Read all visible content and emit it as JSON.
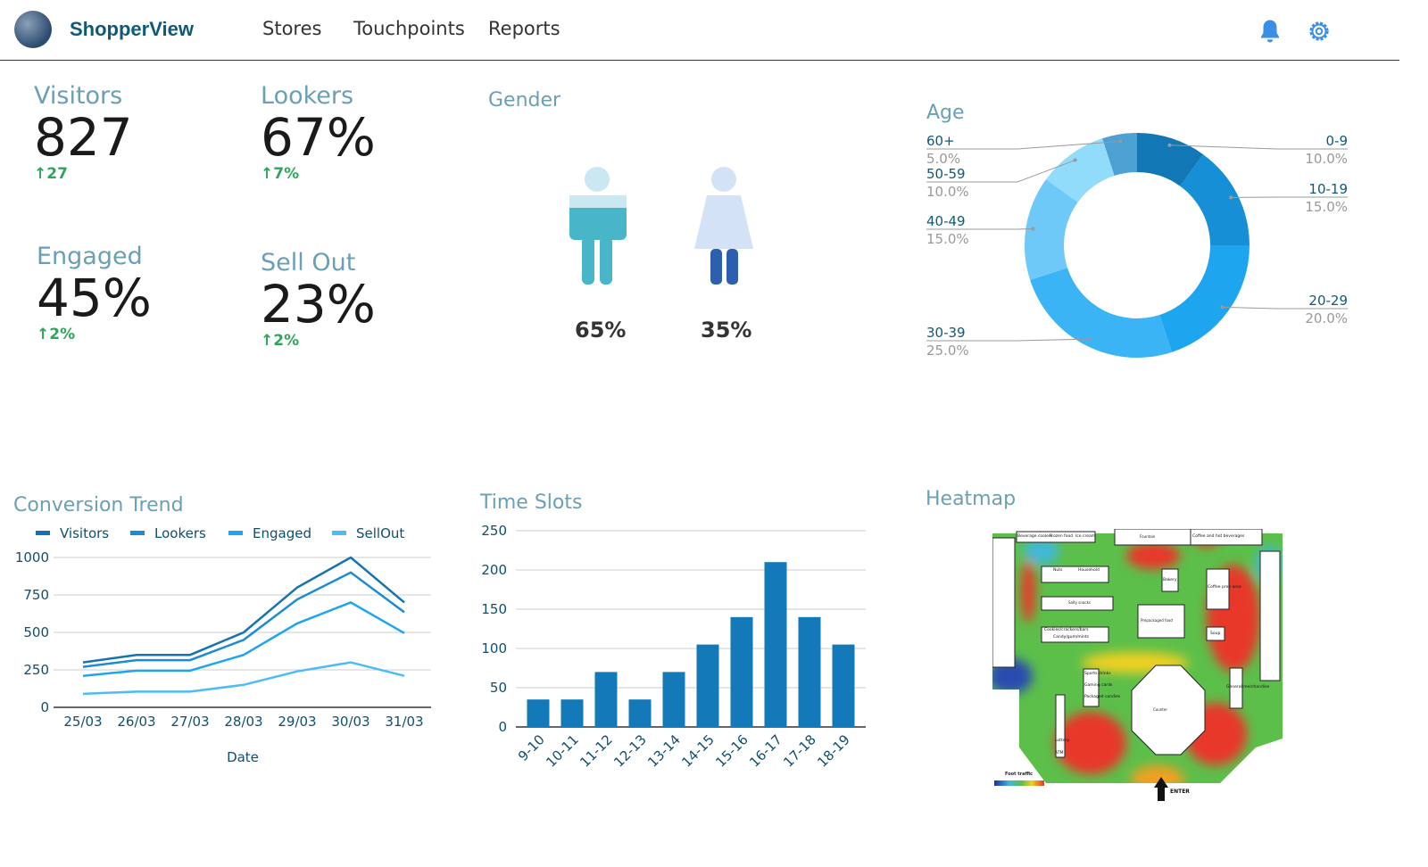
{
  "header": {
    "brand": "ShopperView",
    "nav": [
      "Stores",
      "Touchpoints",
      "Reports"
    ],
    "icons": [
      "bell-icon",
      "gear-icon"
    ],
    "accent": "#3a8ee6"
  },
  "kpis": [
    {
      "label": "Visitors",
      "value": "827",
      "delta": "27"
    },
    {
      "label": "Lookers",
      "value": "67%",
      "delta": "7%"
    },
    {
      "label": "Engaged",
      "value": "45%",
      "delta": "2%"
    },
    {
      "label": "Sell Out",
      "value": "23%",
      "delta": "2%"
    }
  ],
  "gender": {
    "title": "Gender",
    "male": "65%",
    "female": "35%"
  },
  "age": {
    "title": "Age",
    "slices": [
      {
        "label": "0-9",
        "pct": "10.0%",
        "value": 10,
        "color": "#1177b5"
      },
      {
        "label": "10-19",
        "pct": "15.0%",
        "value": 15,
        "color": "#178fd6"
      },
      {
        "label": "20-29",
        "pct": "20.0%",
        "value": 20,
        "color": "#1ea5f0"
      },
      {
        "label": "30-39",
        "pct": "25.0%",
        "value": 25,
        "color": "#3ab4f5"
      },
      {
        "label": "40-49",
        "pct": "15.0%",
        "value": 15,
        "color": "#6ec8f8"
      },
      {
        "label": "50-59",
        "pct": "10.0%",
        "value": 10,
        "color": "#92dcfb"
      },
      {
        "label": "60+",
        "pct": "5.0%",
        "value": 5,
        "color": "#4ca1d2"
      }
    ]
  },
  "chart_data": [
    {
      "type": "line",
      "title": "Conversion Trend",
      "xlabel": "Date",
      "ylabel": "",
      "ylim": [
        0,
        1000
      ],
      "yticks": [
        0,
        250,
        500,
        750,
        1000
      ],
      "grid": true,
      "legend": "top",
      "categories": [
        "25/03",
        "26/03",
        "27/03",
        "28/03",
        "29/03",
        "30/03",
        "31/03"
      ],
      "series": [
        {
          "name": "Visitors",
          "color": "#1673b0",
          "values": [
            300,
            350,
            350,
            500,
            800,
            1000,
            700
          ]
        },
        {
          "name": "Lookers",
          "color": "#1a8bd4",
          "values": [
            270,
            315,
            315,
            450,
            720,
            900,
            635
          ]
        },
        {
          "name": "Engaged",
          "color": "#1ea5f0",
          "values": [
            210,
            245,
            245,
            350,
            560,
            700,
            495
          ]
        },
        {
          "name": "SellOut",
          "color": "#4bbcf5",
          "values": [
            90,
            105,
            105,
            150,
            240,
            300,
            210
          ]
        }
      ]
    },
    {
      "type": "bar",
      "title": "Time Slots",
      "ylim": [
        0,
        250
      ],
      "yticks": [
        0,
        50,
        100,
        150,
        200,
        250
      ],
      "grid": true,
      "color": "#1479b8",
      "categories": [
        "9-10",
        "10-11",
        "11-12",
        "12-13",
        "13-14",
        "14-15",
        "15-16",
        "16-17",
        "17-18",
        "18-19"
      ],
      "values": [
        35,
        35,
        70,
        35,
        70,
        105,
        140,
        210,
        140,
        105
      ]
    }
  ],
  "heatmap": {
    "title": "Heatmap",
    "legend_title": "Foot traffic",
    "labels": [
      "Beverage coolers",
      "Frozen food",
      "Ice cream",
      "Fountain",
      "Coffee and hot beverages",
      "Salty snacks",
      "Prepackaged food",
      "Bakery",
      "Coffee prep area",
      "Soup",
      "Counter",
      "General merchandise",
      "Sports drinks",
      "Gaming cards",
      "Packaged candies",
      "Candy/gum/mints",
      "Cookies/crackers/bars",
      "Lottery",
      "ATM",
      "Nuts",
      "Household"
    ],
    "entrance": "ENTER"
  }
}
